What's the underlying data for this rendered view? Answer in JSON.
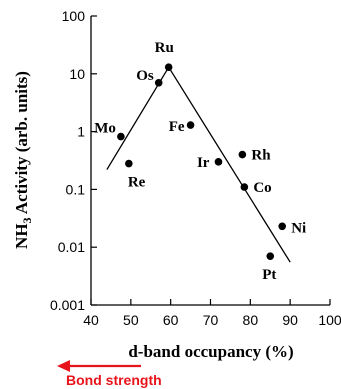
{
  "chart_data": {
    "type": "scatter",
    "xlabel": "d-band occupancy (%)",
    "ylabel_prefix": "NH",
    "ylabel_subscript": "3",
    "ylabel_suffix": " Activity (arb. units)",
    "xlim": [
      40,
      100
    ],
    "ylim": [
      0.001,
      100
    ],
    "y_scale": "log",
    "grid": false,
    "x_ticks": [
      40,
      50,
      60,
      70,
      80,
      90,
      100
    ],
    "x_tick_labels": [
      "40",
      "50",
      "60",
      "70",
      "80",
      "90",
      "100"
    ],
    "y_ticks": [
      0.001,
      0.01,
      0.1,
      1,
      10,
      100
    ],
    "y_tick_labels": [
      "0.001",
      "0.01",
      "0.1",
      "1",
      "10",
      "100"
    ],
    "points": [
      {
        "label": "Mo",
        "x": 47.5,
        "y": 0.82
      },
      {
        "label": "Re",
        "x": 49.5,
        "y": 0.28
      },
      {
        "label": "Os",
        "x": 57,
        "y": 7
      },
      {
        "label": "Ru",
        "x": 59.5,
        "y": 13
      },
      {
        "label": "Fe",
        "x": 65,
        "y": 1.3
      },
      {
        "label": "Ir",
        "x": 72,
        "y": 0.3
      },
      {
        "label": "Rh",
        "x": 78,
        "y": 0.4
      },
      {
        "label": "Co",
        "x": 78.5,
        "y": 0.11
      },
      {
        "label": "Pt",
        "x": 85,
        "y": 0.007
      },
      {
        "label": "Ni",
        "x": 88,
        "y": 0.023
      }
    ],
    "trend_line": [
      {
        "x": 44,
        "y": 0.22
      },
      {
        "x": 59.5,
        "y": 13
      },
      {
        "x": 90,
        "y": 0.0055
      }
    ],
    "annotation": {
      "text": "Bond strength",
      "color": "#e8141b",
      "direction": "left"
    }
  }
}
